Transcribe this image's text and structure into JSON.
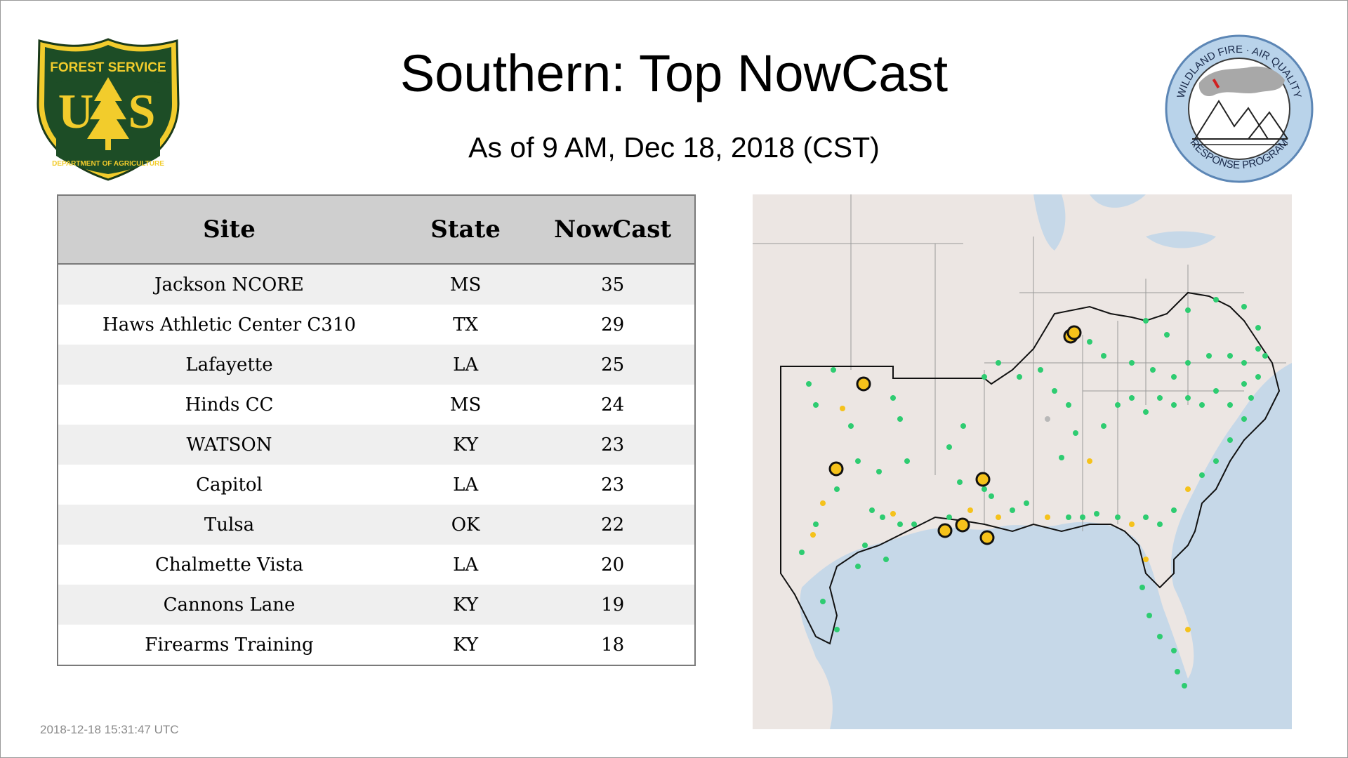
{
  "header": {
    "title": "Southern: Top NowCast",
    "subtitle": "As of  9 AM, Dec 18, 2018 (CST)"
  },
  "logos": {
    "left": {
      "icon": "usfs-shield-icon",
      "top_text": "FOREST SERVICE",
      "letters": "U S",
      "bottom_text": "DEPARTMENT OF AGRICULTURE"
    },
    "right": {
      "icon": "wildland-fire-air-quality-seal-icon",
      "top_text": "WILDLAND FIRE · AIR QUALITY",
      "bottom_text": "RESPONSE PROGRAM"
    }
  },
  "table": {
    "headers": [
      "Site",
      "State",
      "NowCast"
    ],
    "rows": [
      {
        "site": "Jackson NCORE",
        "state": "MS",
        "nowcast": "35"
      },
      {
        "site": "Haws Athletic Center C310",
        "state": "TX",
        "nowcast": "29"
      },
      {
        "site": "Lafayette",
        "state": "LA",
        "nowcast": "25"
      },
      {
        "site": "Hinds CC",
        "state": "MS",
        "nowcast": "24"
      },
      {
        "site": "WATSON",
        "state": "KY",
        "nowcast": "23"
      },
      {
        "site": "Capitol",
        "state": "LA",
        "nowcast": "23"
      },
      {
        "site": "Tulsa",
        "state": "OK",
        "nowcast": "22"
      },
      {
        "site": "Chalmette Vista",
        "state": "LA",
        "nowcast": "20"
      },
      {
        "site": "Cannons Lane",
        "state": "KY",
        "nowcast": "19"
      },
      {
        "site": "Firearms Training",
        "state": "KY",
        "nowcast": "18"
      }
    ]
  },
  "map": {
    "colors": {
      "land": "#ece6e3",
      "water": "#c6d8e8",
      "good": "#2ecc71",
      "moderate": "#f5c21b",
      "nodata": "#b8b8b8",
      "highlight_stroke": "#000000"
    }
  },
  "footer": {
    "timestamp": "2018-12-18 15:31:47 UTC"
  }
}
